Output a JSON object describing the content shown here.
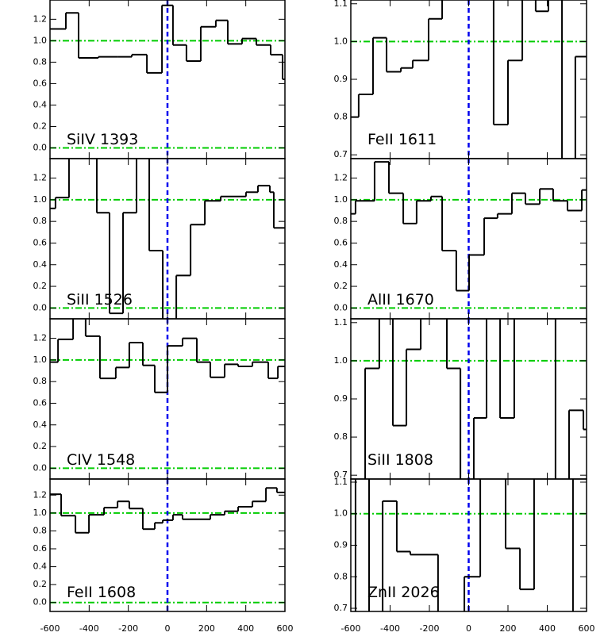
{
  "chart_data": [
    {
      "type": "step",
      "annotation": "SiIV 1393",
      "color": "#000000",
      "x": [
        -600,
        -519,
        -454,
        -353,
        -255,
        -182,
        -105,
        -28,
        28,
        97,
        170,
        247,
        308,
        381,
        454,
        527,
        588
      ],
      "values": [
        1.11,
        1.26,
        0.84,
        0.85,
        0.85,
        0.87,
        0.7,
        1.33,
        0.96,
        0.81,
        1.13,
        1.19,
        0.97,
        1.02,
        0.96,
        0.87,
        0.64
      ],
      "xlim": [
        -600,
        600
      ],
      "xticks": [
        -600,
        -400,
        -200,
        0,
        200,
        400,
        600
      ],
      "ylim": [
        -0.1,
        1.38
      ],
      "yticks": [
        {
          "value": 0,
          "label": "0.0"
        },
        0.2,
        0.4,
        0.6,
        0.8,
        {
          "value": 1,
          "label": "1.0"
        },
        1.2
      ],
      "hlines": [
        0,
        1
      ],
      "hline_color": "#00cc00",
      "vline": 0,
      "vline_color": "#0000ee"
    },
    {
      "type": "step",
      "annotation": "SiII 1526",
      "color": "#000000",
      "x": [
        -600,
        -572,
        -503,
        -361,
        -296,
        -227,
        -158,
        -93,
        -24,
        45,
        118,
        191,
        272,
        401,
        462,
        523,
        543
      ],
      "values": [
        0.92,
        1.02,
        1.5,
        0.88,
        -0.05,
        0.88,
        1.5,
        0.53,
        -0.12,
        0.3,
        0.77,
        0.99,
        1.03,
        1.07,
        1.13,
        1.07,
        0.74
      ],
      "xlim": [
        -600,
        600
      ],
      "xticks": [
        -600,
        -400,
        -200,
        0,
        200,
        400,
        600
      ],
      "ylim": [
        -0.1,
        1.38
      ],
      "yticks": [
        {
          "value": 0,
          "label": "0.0"
        },
        0.2,
        0.4,
        0.6,
        0.8,
        {
          "value": 1,
          "label": "1.0"
        },
        1.2
      ],
      "hlines": [
        0,
        1
      ],
      "hline_color": "#00cc00",
      "vline": 0,
      "vline_color": "#0000ee"
    },
    {
      "type": "step",
      "annotation": "CIV 1548",
      "color": "#000000",
      "x": [
        -600,
        -559,
        -482,
        -418,
        -345,
        -264,
        -195,
        -126,
        -65,
        0,
        77,
        150,
        219,
        292,
        361,
        434,
        515,
        564
      ],
      "values": [
        0.98,
        1.19,
        1.4,
        1.22,
        0.83,
        0.93,
        1.16,
        0.95,
        0.7,
        1.13,
        1.2,
        0.98,
        0.84,
        0.96,
        0.94,
        0.98,
        0.83,
        0.94
      ],
      "xlim": [
        -600,
        600
      ],
      "xticks": [
        -600,
        -400,
        -200,
        0,
        200,
        400,
        600
      ],
      "ylim": [
        -0.1,
        1.38
      ],
      "yticks": [
        {
          "value": 0,
          "label": "0.0"
        },
        0.2,
        0.4,
        0.6,
        0.8,
        {
          "value": 1,
          "label": "1.0"
        },
        1.2
      ],
      "hlines": [
        0,
        1
      ],
      "hline_color": "#00cc00",
      "vline": 0,
      "vline_color": "#0000ee"
    },
    {
      "type": "step",
      "annotation": "FeII 1608",
      "color": "#000000",
      "x": [
        -600,
        -543,
        -470,
        -401,
        -324,
        -255,
        -195,
        -126,
        -65,
        -24,
        28,
        77,
        219,
        292,
        361,
        434,
        503,
        559
      ],
      "values": [
        1.21,
        0.97,
        0.78,
        0.98,
        1.06,
        1.13,
        1.05,
        0.82,
        0.89,
        0.92,
        0.98,
        0.93,
        0.98,
        1.02,
        1.07,
        1.13,
        1.28,
        1.23
      ],
      "xlim": [
        -600,
        600
      ],
      "xticks": [
        -600,
        -400,
        -200,
        0,
        200,
        400,
        600
      ],
      "ylim": [
        -0.1,
        1.38
      ],
      "yticks": [
        {
          "value": 0,
          "label": "0.0"
        },
        0.2,
        0.4,
        0.6,
        0.8,
        {
          "value": 1,
          "label": "1.0"
        },
        1.2
      ],
      "hlines": [
        0,
        1
      ],
      "hline_color": "#00cc00",
      "vline": 0,
      "vline_color": "#0000ee"
    },
    {
      "type": "step",
      "annotation": "FeII 1611",
      "color": "#000000",
      "x": [
        -600,
        -560,
        -487,
        -418,
        -345,
        -285,
        -204,
        -135,
        127,
        200,
        273,
        341,
        406,
        475,
        543
      ],
      "values": [
        0.8,
        0.86,
        1.01,
        0.92,
        0.93,
        0.95,
        1.06,
        1.15,
        0.78,
        0.95,
        1.15,
        1.08,
        1.15,
        0.68,
        0.96
      ],
      "xlim": [
        -600,
        600
      ],
      "xticks": [
        -600,
        -400,
        -200,
        0,
        200,
        400,
        600
      ],
      "ylim": [
        0.69,
        1.11
      ],
      "yticks": [
        0.7,
        0.8,
        0.9,
        {
          "value": 1,
          "label": "1.0"
        },
        1.1
      ],
      "hlines": [
        1
      ],
      "hline_color": "#00cc00",
      "vline": 0,
      "vline_color": "#0000ee"
    },
    {
      "type": "step",
      "annotation": "AlII 1670",
      "color": "#000000",
      "x": [
        -600,
        -576,
        -479,
        -406,
        -333,
        -265,
        -192,
        -135,
        -63,
        2,
        79,
        147,
        220,
        289,
        362,
        430,
        503,
        576
      ],
      "values": [
        0.87,
        0.99,
        1.35,
        1.06,
        0.78,
        0.99,
        1.03,
        0.53,
        0.16,
        0.49,
        0.83,
        0.87,
        1.06,
        0.96,
        1.1,
        0.99,
        0.9,
        1.09
      ],
      "xlim": [
        -600,
        600
      ],
      "xticks": [
        -600,
        -400,
        -200,
        0,
        200,
        400,
        600
      ],
      "ylim": [
        -0.1,
        1.38
      ],
      "yticks": [
        {
          "value": 0,
          "label": "0.0"
        },
        0.2,
        0.4,
        0.6,
        0.8,
        {
          "value": 1,
          "label": "1.0"
        },
        1.2
      ],
      "hlines": [
        0,
        1
      ],
      "hline_color": "#00cc00",
      "vline": 0,
      "vline_color": "#0000ee"
    },
    {
      "type": "step",
      "annotation": "SiII 1808",
      "color": "#000000",
      "x": [
        -600,
        -527,
        -455,
        -386,
        -317,
        -244,
        -111,
        -42,
        26,
        91,
        160,
        232,
        442,
        511,
        584
      ],
      "values": [
        0.68,
        0.98,
        1.15,
        0.83,
        1.03,
        1.15,
        0.98,
        0.68,
        0.85,
        1.15,
        0.85,
        1.15,
        0.68,
        0.87,
        0.82
      ],
      "xlim": [
        -600,
        600
      ],
      "xticks": [
        -600,
        -400,
        -200,
        0,
        200,
        400,
        600
      ],
      "ylim": [
        0.69,
        1.11
      ],
      "yticks": [
        0.7,
        0.8,
        0.9,
        {
          "value": 1,
          "label": "1.0"
        },
        1.1
      ],
      "hlines": [
        1
      ],
      "hline_color": "#00cc00",
      "vline": 0,
      "vline_color": "#0000ee"
    },
    {
      "type": "step",
      "annotation": "ZnII 2026",
      "color": "#000000",
      "x": [
        -600,
        -576,
        -507,
        -438,
        -366,
        -297,
        -156,
        -22,
        59,
        188,
        261,
        333,
        531
      ],
      "values": [
        0.68,
        1.15,
        0.68,
        1.04,
        0.88,
        0.87,
        0.68,
        0.8,
        1.15,
        0.89,
        0.76,
        1.15,
        0.68
      ],
      "xlim": [
        -600,
        600
      ],
      "xticks": [
        -600,
        -400,
        -200,
        0,
        200,
        400,
        600
      ],
      "ylim": [
        0.69,
        1.11
      ],
      "yticks": [
        0.7,
        0.8,
        0.9,
        {
          "value": 1,
          "label": "1.0"
        },
        1.1
      ],
      "hlines": [
        1
      ],
      "hline_color": "#00cc00",
      "vline": 0,
      "vline_color": "#0000ee"
    }
  ]
}
